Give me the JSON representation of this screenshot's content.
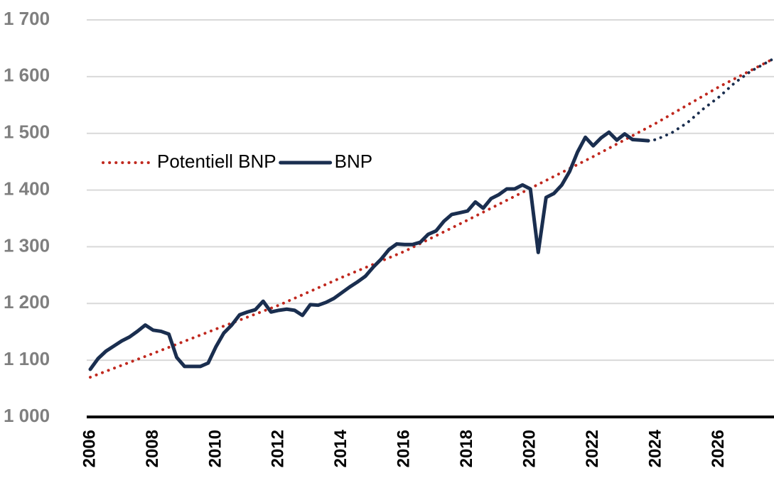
{
  "chart_data": {
    "type": "line",
    "xlim": [
      2006,
      2027.75
    ],
    "ylim": [
      1000,
      1700
    ],
    "yticks": [
      {
        "value": 1000,
        "label": "1 000"
      },
      {
        "value": 1100,
        "label": "1 100"
      },
      {
        "value": 1200,
        "label": "1 200"
      },
      {
        "value": 1300,
        "label": "1 300"
      },
      {
        "value": 1400,
        "label": "1 400"
      },
      {
        "value": 1500,
        "label": "1 500"
      },
      {
        "value": 1600,
        "label": "1 600"
      },
      {
        "value": 1700,
        "label": "1 700"
      }
    ],
    "xticks": [
      2006,
      2008,
      2010,
      2012,
      2014,
      2016,
      2018,
      2020,
      2022,
      2024,
      2026
    ],
    "grid": true,
    "series": [
      {
        "name": "Potentiell BNP",
        "color": "#c0281e",
        "style": "dotted",
        "x": [
          2006,
          2008,
          2010,
          2012,
          2014,
          2016,
          2018,
          2020,
          2022,
          2024,
          2026,
          2027.75
        ],
        "values": [
          1070,
          1112,
          1155,
          1197,
          1246,
          1292,
          1347,
          1403,
          1459,
          1518,
          1582,
          1632
        ]
      },
      {
        "name": "BNP",
        "color": "#1a2e4f",
        "style": "solid",
        "x": [
          2006,
          2006.25,
          2006.5,
          2006.75,
          2007,
          2007.25,
          2007.5,
          2007.75,
          2008,
          2008.25,
          2008.5,
          2008.75,
          2009,
          2009.25,
          2009.5,
          2009.75,
          2010,
          2010.25,
          2010.5,
          2010.75,
          2011,
          2011.25,
          2011.5,
          2011.75,
          2012,
          2012.25,
          2012.5,
          2012.75,
          2013,
          2013.25,
          2013.5,
          2013.75,
          2014,
          2014.25,
          2014.5,
          2014.75,
          2015,
          2015.25,
          2015.5,
          2015.75,
          2016,
          2016.25,
          2016.5,
          2016.75,
          2017,
          2017.25,
          2017.5,
          2017.75,
          2018,
          2018.25,
          2018.5,
          2018.75,
          2019,
          2019.25,
          2019.5,
          2019.75,
          2020,
          2020.25,
          2020.5,
          2020.75,
          2021,
          2021.25,
          2021.5,
          2021.75,
          2022,
          2022.25,
          2022.5,
          2022.75,
          2023,
          2023.25,
          2023.5,
          2023.75
        ],
        "values": [
          1084,
          1103,
          1116,
          1125,
          1134,
          1141,
          1151,
          1162,
          1153,
          1151,
          1146,
          1105,
          1089,
          1089,
          1089,
          1095,
          1124,
          1148,
          1162,
          1180,
          1185,
          1189,
          1204,
          1185,
          1188,
          1190,
          1188,
          1179,
          1198,
          1197,
          1202,
          1209,
          1219,
          1229,
          1238,
          1248,
          1264,
          1278,
          1295,
          1305,
          1304,
          1304,
          1308,
          1322,
          1328,
          1345,
          1357,
          1360,
          1363,
          1379,
          1368,
          1385,
          1392,
          1402,
          1402,
          1409,
          1402,
          1290,
          1387,
          1394,
          1409,
          1433,
          1467,
          1493,
          1478,
          1492,
          1502,
          1488,
          1499,
          1489,
          1488,
          1487
        ]
      },
      {
        "color": "#1a2e4f",
        "style": "dotted",
        "x": [
          2023.75,
          2024,
          2024.5,
          2025,
          2025.5,
          2026,
          2026.5,
          2027,
          2027.75
        ],
        "values": [
          1487,
          1489,
          1501,
          1519,
          1543,
          1564,
          1589,
          1609,
          1632
        ]
      }
    ]
  }
}
